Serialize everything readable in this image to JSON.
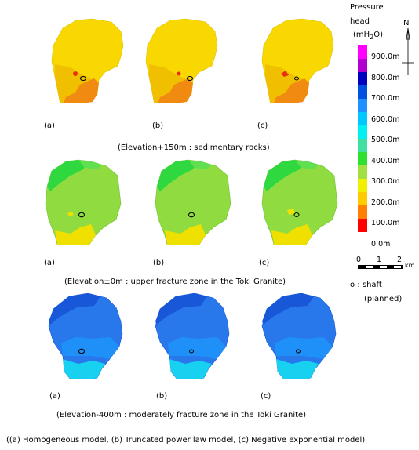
{
  "panel_labels": [
    "(a)",
    "(b)",
    "(c)"
  ],
  "row_captions": [
    "(Elevation+150m : sedimentary rocks)",
    "(Elevation±0m : upper fracture zone in the Toki Granite)",
    "(Elevation-400m : moderately fracture zone in the Toki Granite)"
  ],
  "legend": {
    "title_line1": "Pressure",
    "title_line2": "head",
    "unit_prefix": "(mH",
    "unit_sub": "2",
    "unit_suffix": "O)",
    "levels": [
      "900.0m",
      "800.0m",
      "700.0m",
      "600.0m",
      "500.0m",
      "400.0m",
      "300.0m",
      "200.0m",
      "100.0m",
      "0.0m"
    ],
    "colors": [
      "#ff00ff",
      "#b000d0",
      "#0000c0",
      "#0050e0",
      "#1e90ff",
      "#00c8ff",
      "#00f0f0",
      "#40e0a0",
      "#30e030",
      "#a0e040",
      "#f0f000",
      "#ffcc00",
      "#ff8000",
      "#ff0000"
    ]
  },
  "north": "N",
  "scale": {
    "t0": "0",
    "t1": "1",
    "t2": "2",
    "unit": "km"
  },
  "shaft": {
    "symbol": "o",
    "label": ": shaft",
    "status": "(planned)"
  },
  "footer": "((a) Homogeneous model, (b) Truncated power law model, (c) Negative exponential model)",
  "row_colors": {
    "row1": {
      "main": "#f8d800",
      "mid": "#f0c000",
      "low": "#f08a10",
      "hot": "#e83010"
    },
    "row2": {
      "main": "#90dc40",
      "top": "#30d840",
      "low": "#f0e000"
    },
    "row3": {
      "main": "#2878ec",
      "top": "#1858d8",
      "low": "#18d0f0",
      "mid": "#1e90f8"
    }
  }
}
